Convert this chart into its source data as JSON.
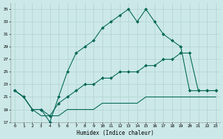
{
  "xlabel": "Humidex (Indice chaleur)",
  "bg_color": "#cce8e8",
  "grid_color": "#aacccc",
  "line_color": "#006655",
  "xlim_min": -0.5,
  "xlim_max": 23.5,
  "ylim_min": 17,
  "ylim_max": 36,
  "xticks": [
    0,
    1,
    2,
    3,
    4,
    5,
    6,
    7,
    8,
    9,
    10,
    11,
    12,
    13,
    14,
    15,
    16,
    17,
    18,
    19,
    20,
    21,
    22,
    23
  ],
  "yticks": [
    17,
    19,
    21,
    23,
    25,
    27,
    29,
    31,
    33,
    35
  ],
  "s1x": [
    0,
    1,
    2,
    3,
    4,
    5,
    6,
    7,
    8,
    9,
    10,
    11,
    12,
    13,
    14,
    15,
    16,
    17,
    18,
    19,
    20,
    21,
    22,
    23
  ],
  "s1y": [
    22,
    21,
    19,
    19,
    17,
    21,
    25,
    28,
    29,
    30,
    32,
    33,
    34,
    35,
    33,
    35,
    33,
    31,
    30,
    29,
    22,
    22,
    22,
    22
  ],
  "s2x": [
    0,
    1,
    2,
    3,
    4,
    5,
    6,
    7,
    8,
    9,
    10,
    11,
    12,
    13,
    14,
    15,
    16,
    17,
    18,
    19,
    20,
    21,
    22,
    23
  ],
  "s2y": [
    22,
    21,
    19,
    19,
    18,
    20,
    21,
    22,
    23,
    23,
    24,
    24,
    25,
    25,
    25,
    26,
    26,
    27,
    27,
    28,
    28,
    22,
    22,
    22
  ],
  "s3x": [
    0,
    1,
    2,
    3,
    4,
    5,
    6,
    7,
    8,
    9,
    10,
    11,
    12,
    13,
    14,
    15,
    16,
    17,
    18,
    19,
    20,
    21,
    22,
    23
  ],
  "s3y": [
    22,
    21,
    19,
    18,
    18,
    18,
    19,
    19,
    19,
    19,
    20,
    20,
    20,
    20,
    20,
    21,
    21,
    21,
    21,
    21,
    21,
    21,
    21,
    21
  ]
}
